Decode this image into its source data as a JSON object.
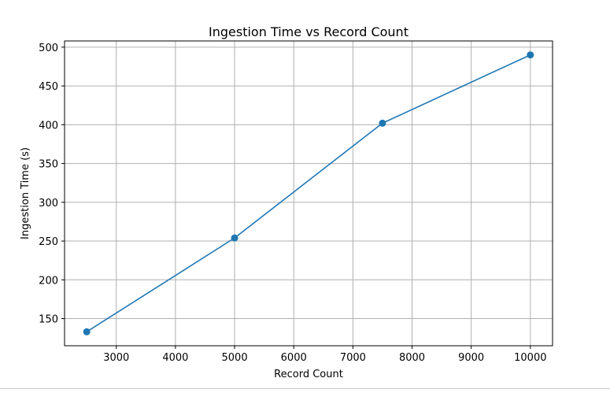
{
  "chart_data": {
    "type": "line",
    "title": "Ingestion Time vs Record Count",
    "xlabel": "Record Count",
    "ylabel": "Ingestion Time (s)",
    "x": [
      2500,
      5000,
      7500,
      10000
    ],
    "series": [
      {
        "values": [
          133,
          254,
          402,
          490
        ],
        "color": "#1f77b4",
        "marker": "circle"
      }
    ],
    "xlim": [
      2125,
      10375
    ],
    "ylim": [
      115,
      508
    ],
    "xticks": [
      3000,
      4000,
      5000,
      6000,
      7000,
      8000,
      9000,
      10000
    ],
    "yticks": [
      150,
      200,
      250,
      300,
      350,
      400,
      450,
      500
    ],
    "grid": true,
    "legend": "none"
  }
}
